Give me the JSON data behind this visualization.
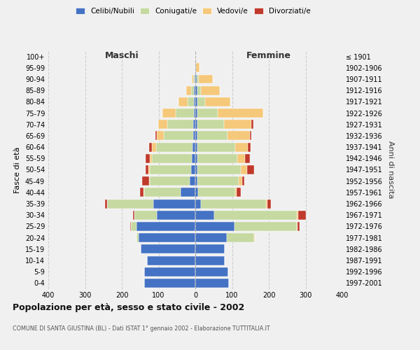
{
  "age_groups": [
    "100+",
    "95-99",
    "90-94",
    "85-89",
    "80-84",
    "75-79",
    "70-74",
    "65-69",
    "60-64",
    "55-59",
    "50-54",
    "45-49",
    "40-44",
    "35-39",
    "30-34",
    "25-29",
    "20-24",
    "15-19",
    "10-14",
    "5-9",
    "0-4"
  ],
  "birth_years": [
    "≤ 1901",
    "1902-1906",
    "1907-1911",
    "1912-1916",
    "1917-1921",
    "1922-1926",
    "1927-1931",
    "1932-1936",
    "1937-1941",
    "1942-1946",
    "1947-1951",
    "1952-1956",
    "1957-1961",
    "1962-1966",
    "1967-1971",
    "1972-1976",
    "1977-1981",
    "1982-1986",
    "1987-1991",
    "1992-1996",
    "1997-2001"
  ],
  "male": {
    "celibe": [
      0,
      0,
      2,
      4,
      3,
      4,
      6,
      6,
      8,
      10,
      12,
      16,
      40,
      115,
      105,
      160,
      155,
      148,
      132,
      140,
      140
    ],
    "coniugato": [
      0,
      0,
      4,
      8,
      18,
      50,
      70,
      80,
      98,
      108,
      112,
      108,
      100,
      125,
      60,
      15,
      5,
      0,
      0,
      0,
      0
    ],
    "vedovo": [
      0,
      0,
      4,
      12,
      25,
      35,
      25,
      18,
      12,
      5,
      4,
      2,
      1,
      0,
      0,
      0,
      0,
      0,
      0,
      0,
      0
    ],
    "divorziato": [
      0,
      0,
      0,
      0,
      0,
      0,
      0,
      5,
      8,
      12,
      8,
      18,
      10,
      5,
      5,
      2,
      0,
      0,
      0,
      0,
      0
    ]
  },
  "female": {
    "nubile": [
      0,
      2,
      4,
      5,
      5,
      5,
      6,
      6,
      6,
      6,
      6,
      6,
      8,
      15,
      52,
      107,
      85,
      80,
      80,
      90,
      92
    ],
    "coniugata": [
      0,
      0,
      5,
      10,
      22,
      55,
      72,
      82,
      102,
      108,
      118,
      112,
      100,
      178,
      225,
      170,
      75,
      0,
      0,
      0,
      0
    ],
    "vedova": [
      2,
      10,
      38,
      52,
      68,
      125,
      75,
      60,
      35,
      22,
      16,
      10,
      5,
      3,
      3,
      2,
      2,
      0,
      0,
      0,
      0
    ],
    "divorziata": [
      0,
      0,
      0,
      0,
      0,
      0,
      5,
      5,
      8,
      12,
      20,
      6,
      10,
      10,
      20,
      5,
      0,
      0,
      0,
      0,
      0
    ]
  },
  "colors": {
    "celibe_nubile": "#4472C4",
    "coniugato_coniugata": "#C5D9A0",
    "vedovo_vedova": "#F5C87A",
    "divorziato_divorziata": "#C0392B"
  },
  "title": "Popolazione per età, sesso e stato civile - 2002",
  "subtitle": "COMUNE DI SANTA GIUSTINA (BL) - Dati ISTAT 1° gennaio 2002 - Elaborazione TUTTITALIA.IT",
  "xlabel_left": "Maschi",
  "xlabel_right": "Femmine",
  "ylabel_left": "Fasce di età",
  "ylabel_right": "Anni di nascita",
  "xlim": 400,
  "background_color": "#f0f0f0",
  "legend_labels": [
    "Celibi/Nubili",
    "Coniugati/e",
    "Vedovi/e",
    "Divorziati/e"
  ]
}
